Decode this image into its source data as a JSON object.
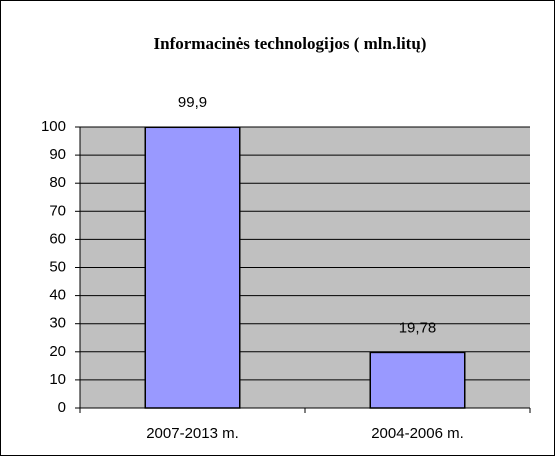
{
  "chart_data": {
    "type": "bar",
    "title": "Informacinės technologijos ( mln.litų)",
    "categories": [
      "2007-2013 m.",
      "2004-2006 m."
    ],
    "values": [
      99.9,
      19.78
    ],
    "value_labels": [
      "99,9",
      "19,78"
    ],
    "color": "#9999ff",
    "ylim": [
      0,
      100
    ],
    "yticks": [
      0,
      10,
      20,
      30,
      40,
      50,
      60,
      70,
      80,
      90,
      100
    ],
    "grid": true
  }
}
